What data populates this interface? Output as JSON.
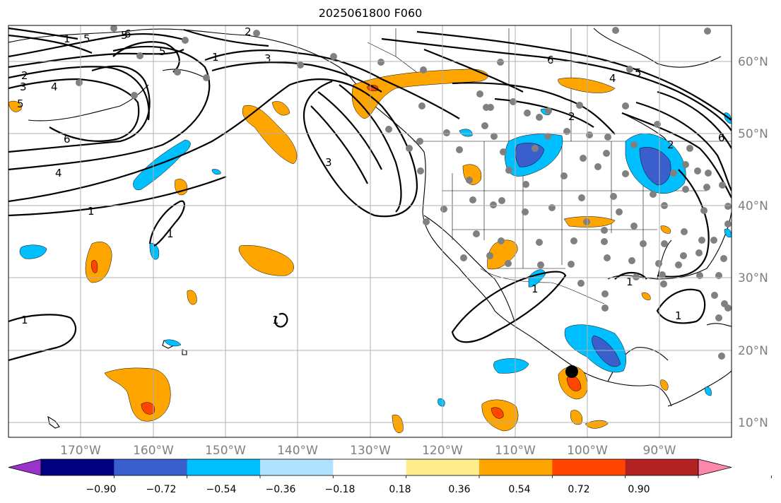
{
  "title": "2025061800 F060",
  "lon_labels": [
    "170°W",
    "160°W",
    "150°W",
    "140°W",
    "130°W",
    "120°W",
    "110°W",
    "100°W",
    "90°W"
  ],
  "lat_labels": [
    "60°N",
    "50°N",
    "40°N",
    "30°N",
    "20°N",
    "10°N"
  ],
  "colorbar": {
    "ticks": [
      "−0.90",
      "−0.72",
      "−0.54",
      "−0.36",
      "−0.18",
      "0.18",
      "0.36",
      "0.54",
      "0.72",
      "0.90"
    ],
    "colors": [
      "#9933cc",
      "#000080",
      "#3a5fcd",
      "#00bfff",
      "#b0e2ff",
      "#ffffff",
      "#ffec8b",
      "#ffa500",
      "#ff4500",
      "#b22222",
      "#ff88aa"
    ]
  },
  "contour_labels": [
    "1",
    "1",
    "1",
    "1",
    "1",
    "1",
    "1",
    "1",
    "1",
    "2",
    "2",
    "2",
    "3",
    "3",
    "3",
    "4",
    "4",
    "4",
    "5",
    "5",
    "5",
    "6",
    "6",
    "6",
    "5",
    "5",
    "6",
    "2"
  ],
  "colors": {
    "positive": "#ffa500",
    "positive_strong": "#ff4500",
    "negative": "#00bfff",
    "negative_strong": "#3a5fcd",
    "station": "#808080"
  }
}
